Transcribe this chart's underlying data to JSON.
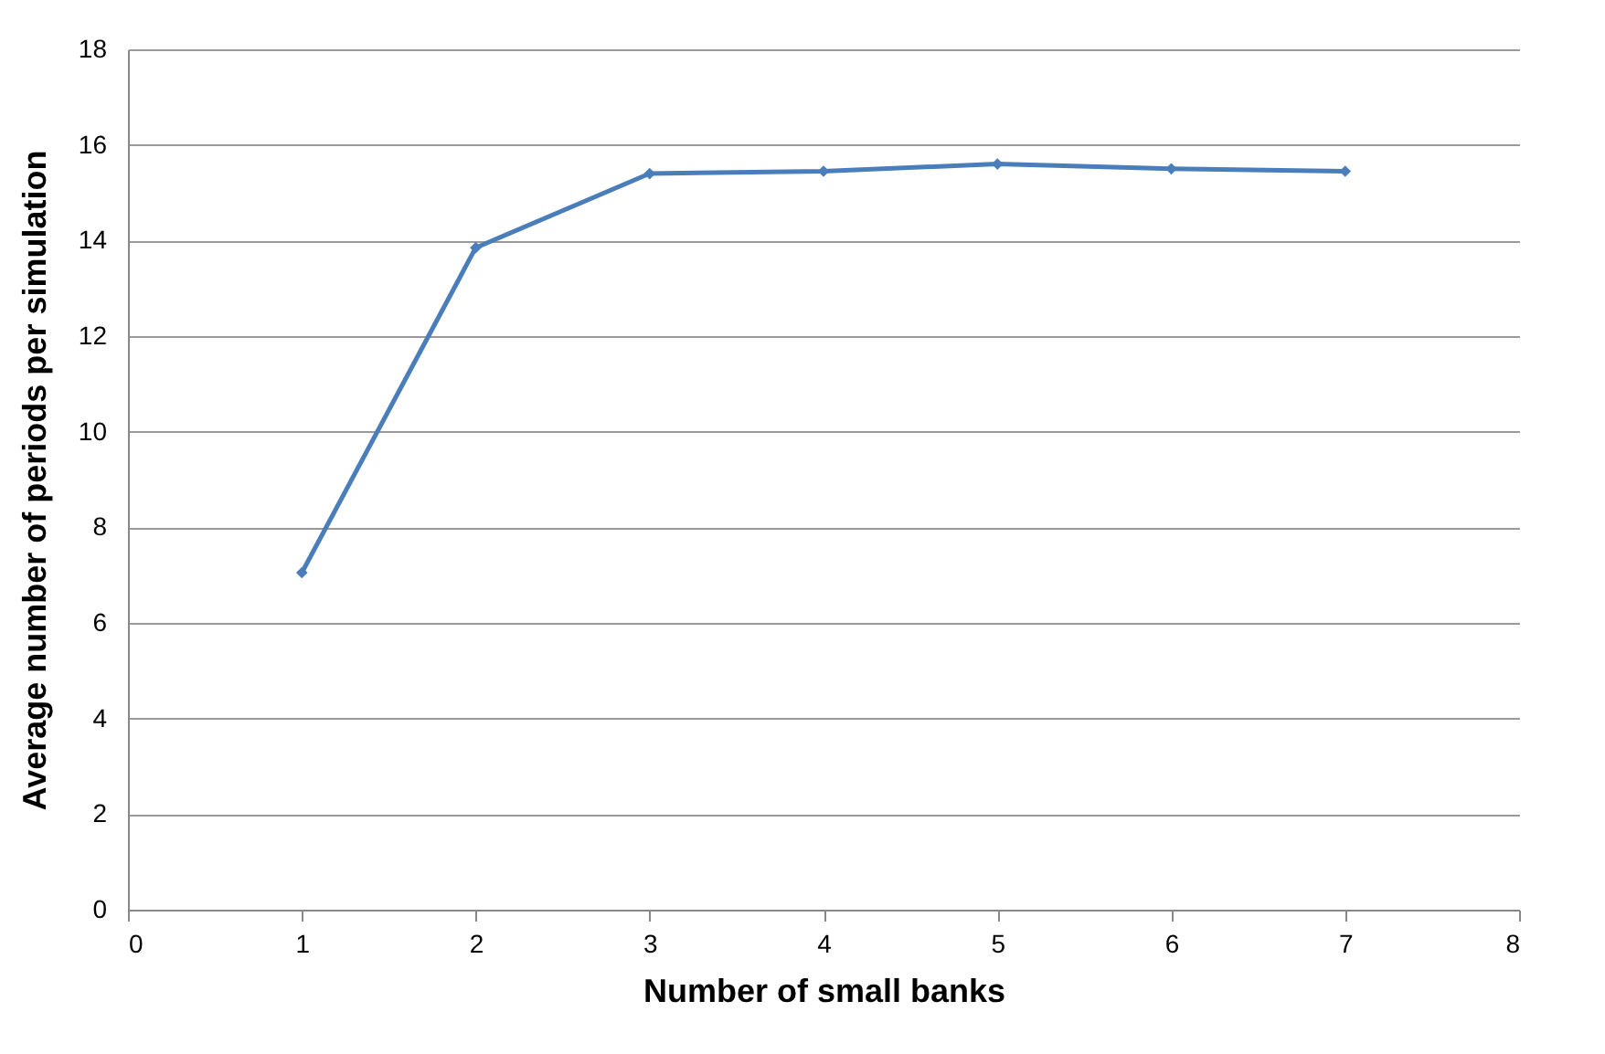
{
  "chart_data": {
    "type": "line",
    "xlabel": "Number of small banks",
    "ylabel": "Average number of periods per simulation",
    "x": [
      1,
      2,
      3,
      4,
      5,
      6,
      7
    ],
    "series": [
      {
        "color": "#4a7ebb",
        "values": [
          7.05,
          13.85,
          15.4,
          15.45,
          15.6,
          15.5,
          15.45
        ]
      }
    ],
    "xlim": [
      0,
      8
    ],
    "xticks": [
      0,
      1,
      2,
      3,
      4,
      5,
      6,
      7,
      8
    ],
    "ylim": [
      0,
      18
    ],
    "yticks": [
      0,
      2,
      4,
      6,
      8,
      10,
      12,
      14,
      16,
      18
    ],
    "grid": "y",
    "marker": "diamond",
    "line_style": "solid"
  }
}
